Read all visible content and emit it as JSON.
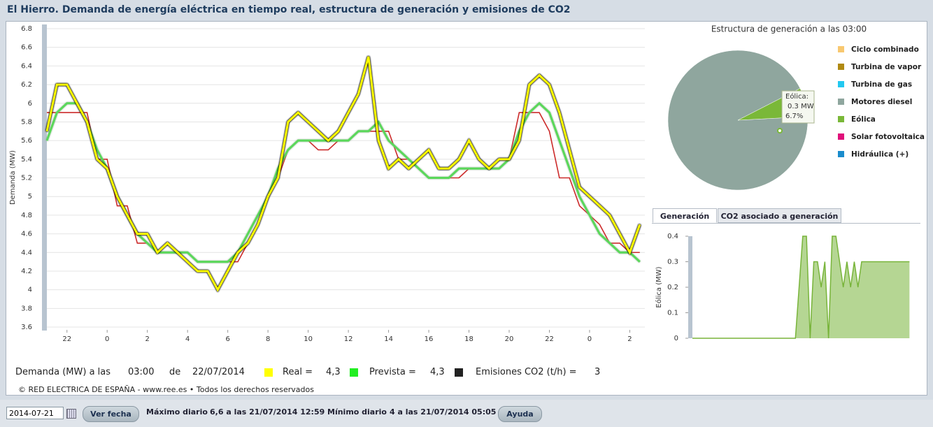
{
  "header": {
    "title": "El Hierro. Demanda de energía eléctrica en tiempo real, estructura de generación y emisiones de CO2"
  },
  "chart_data": [
    {
      "type": "line",
      "ylabel": "Demanda (MW)",
      "x": [
        21,
        21.5,
        22,
        22.5,
        23,
        23.5,
        24,
        24.5,
        25,
        25.5,
        26,
        26.5,
        27,
        27.5,
        28,
        28.5,
        29,
        29.5,
        30,
        30.5,
        31,
        31.5,
        32,
        32.5,
        33,
        33.5,
        34,
        34.5,
        35,
        35.5,
        36,
        36.5,
        37,
        37.5,
        38,
        38.5,
        39,
        39.5,
        40,
        40.5,
        41,
        41.5,
        42,
        42.5,
        43,
        43.5,
        44,
        44.5,
        45,
        45.5,
        46,
        46.5,
        47,
        47.5,
        48,
        48.5,
        49,
        49.5,
        50,
        50.5
      ],
      "xlim": [
        21,
        50.75
      ],
      "xticks": [
        {
          "value": 22,
          "label": "22"
        },
        {
          "value": 24,
          "label": "0"
        },
        {
          "value": 26,
          "label": "2"
        },
        {
          "value": 28,
          "label": "4"
        },
        {
          "value": 30,
          "label": "6"
        },
        {
          "value": 32,
          "label": "8"
        },
        {
          "value": 34,
          "label": "10"
        },
        {
          "value": 36,
          "label": "12"
        },
        {
          "value": 38,
          "label": "14"
        },
        {
          "value": 40,
          "label": "16"
        },
        {
          "value": 42,
          "label": "18"
        },
        {
          "value": 44,
          "label": "20"
        },
        {
          "value": 46,
          "label": "22"
        },
        {
          "value": 48,
          "label": "0"
        },
        {
          "value": 50,
          "label": "2"
        }
      ],
      "ylim": [
        3.6,
        6.8
      ],
      "yticks": [
        3.6,
        3.8,
        4,
        4.2,
        4.4,
        4.6,
        4.8,
        5,
        5.2,
        5.4,
        5.6,
        5.8,
        6,
        6.2,
        6.4,
        6.6,
        6.8
      ],
      "grid": true,
      "series": [
        {
          "color": "#cc2a2a",
          "values": [
            5.9,
            5.9,
            5.9,
            5.9,
            5.9,
            5.4,
            5.4,
            4.9,
            4.9,
            4.5,
            4.5,
            4.4,
            4.4,
            4.4,
            4.4,
            4.3,
            4.3,
            4.3,
            4.3,
            4.3,
            4.5,
            4.7,
            5.0,
            5.2,
            5.5,
            5.6,
            5.6,
            5.5,
            5.5,
            5.6,
            5.6,
            5.7,
            5.7,
            5.7,
            5.7,
            5.4,
            5.4,
            5.3,
            5.2,
            5.2,
            5.2,
            5.2,
            5.3,
            5.3,
            5.3,
            5.4,
            5.4,
            5.9,
            5.9,
            5.9,
            5.7,
            5.2,
            5.2,
            4.9,
            4.8,
            4.7,
            4.5,
            4.5,
            4.4,
            4.4
          ]
        },
        {
          "color": "#5ad85a",
          "values": [
            5.6,
            5.9,
            6.0,
            6.0,
            5.8,
            5.5,
            5.3,
            5.0,
            4.8,
            4.6,
            4.5,
            4.4,
            4.4,
            4.4,
            4.4,
            4.3,
            4.3,
            4.3,
            4.3,
            4.4,
            4.6,
            4.8,
            5.0,
            5.3,
            5.5,
            5.6,
            5.6,
            5.6,
            5.6,
            5.6,
            5.6,
            5.7,
            5.7,
            5.8,
            5.6,
            5.5,
            5.4,
            5.3,
            5.2,
            5.2,
            5.2,
            5.3,
            5.3,
            5.3,
            5.3,
            5.3,
            5.4,
            5.7,
            5.9,
            6.0,
            5.9,
            5.6,
            5.3,
            5.0,
            4.8,
            4.6,
            4.5,
            4.4,
            4.4,
            4.3
          ]
        },
        {
          "color": "#ffff00",
          "values": [
            5.7,
            6.2,
            6.2,
            6.0,
            5.8,
            5.4,
            5.3,
            5.0,
            4.8,
            4.6,
            4.6,
            4.4,
            4.5,
            4.4,
            4.3,
            4.2,
            4.2,
            4.0,
            4.2,
            4.4,
            4.5,
            4.7,
            5.0,
            5.2,
            5.8,
            5.9,
            5.8,
            5.7,
            5.6,
            5.7,
            5.9,
            6.1,
            6.5,
            5.6,
            5.3,
            5.4,
            5.3,
            5.4,
            5.5,
            5.3,
            5.3,
            5.4,
            5.6,
            5.4,
            5.3,
            5.4,
            5.4,
            5.6,
            6.2,
            6.3,
            6.2,
            5.9,
            5.5,
            5.1,
            5.0,
            4.9,
            4.8,
            4.6,
            4.4,
            4.7
          ]
        }
      ]
    },
    {
      "type": "pie",
      "title": "Estructura de generación a las 03:00",
      "categories": [
        "Ciclo combinado",
        "Turbina de vapor",
        "Turbina de gas",
        "Motores diesel",
        "Eólica",
        "Solar fotovoltaica",
        "Hidráulica (+)"
      ],
      "colors": [
        "#f8c870",
        "#b08a12",
        "#22c8f0",
        "#8fa69e",
        "#7ab838",
        "#e0107a",
        "#1a8ccc"
      ],
      "values": [
        0,
        0,
        0,
        93.3,
        6.7,
        0,
        0
      ],
      "tooltip": [
        "Eólica:",
        "0.3 MW",
        "6.7%"
      ]
    },
    {
      "type": "area",
      "tabs": [
        "Generación",
        "CO2 asociado a generación"
      ],
      "ylabel": "Eólica (MW)",
      "color": "#78b43a",
      "x": [
        21,
        21.5,
        22,
        22.5,
        23,
        23.5,
        24,
        24.5,
        25,
        25.5,
        26,
        26.5,
        27,
        27.5,
        28,
        28.5,
        29,
        29.5,
        30,
        30.5,
        31,
        31.5,
        32,
        32.5,
        33,
        33.5,
        34,
        34.5,
        35,
        35.5,
        36,
        36.5,
        37,
        37.5,
        38,
        38.5,
        39,
        39.5,
        40,
        40.5,
        41,
        41.5,
        42,
        42.5,
        43,
        43.5,
        44,
        44.5,
        45,
        45.5,
        46,
        46.5,
        47,
        47.5,
        48,
        48.5,
        49,
        49.5,
        50,
        50.5
      ],
      "xlim": [
        21,
        50.75
      ],
      "ylim": [
        0,
        0.4
      ],
      "yticks": [
        0,
        0.1,
        0.2,
        0.3,
        0.4
      ],
      "values": [
        0,
        0,
        0,
        0,
        0,
        0,
        0,
        0,
        0,
        0,
        0,
        0,
        0,
        0,
        0,
        0,
        0,
        0,
        0,
        0,
        0,
        0,
        0,
        0,
        0,
        0,
        0,
        0,
        0,
        0.2,
        0.4,
        0.4,
        0,
        0.3,
        0.3,
        0.2,
        0.3,
        0,
        0.4,
        0.4,
        0.3,
        0.2,
        0.3,
        0.2,
        0.3,
        0.2,
        0.3,
        0.3,
        0.3,
        0.3,
        0.3,
        0.3,
        0.3,
        0.3,
        0.3,
        0.3,
        0.3,
        0.3,
        0.3,
        0.3
      ]
    }
  ],
  "readout": {
    "label": "Demanda (MW) a las",
    "time": "03:00",
    "de": "de",
    "date": "22/07/2014",
    "items": [
      {
        "label": "Real =",
        "value": "4,3",
        "color": "#ffff00"
      },
      {
        "label": "Prevista =",
        "value": "4,3",
        "color": "#22ee22"
      },
      {
        "label": "Emisiones CO2 (t/h) =",
        "value": "3",
        "color": "#222222"
      }
    ]
  },
  "copyright": "© RED ELECTRICA DE ESPAÑA - www.ree.es • Todos los derechos reservados",
  "controls": {
    "date": "2014-07-21",
    "button": "Ver fecha",
    "max_label": "Máximo diario",
    "max_value": "6,6 a las 21/07/2014 12:59",
    "min_label": "Mínimo diario",
    "min_value": "4 a las 21/07/2014 05:05",
    "help": "Ayuda"
  }
}
